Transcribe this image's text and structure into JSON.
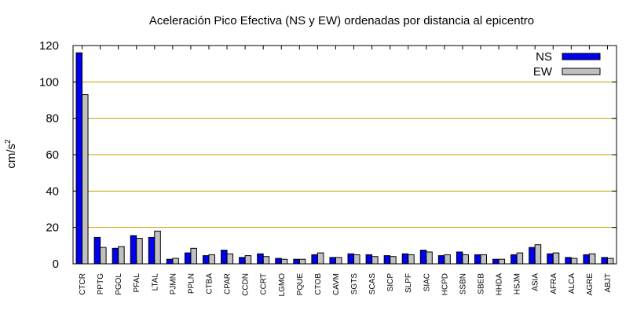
{
  "chart_data": {
    "type": "bar",
    "title": "Aceleración Pico Efectiva (NS y EW) ordenadas por distancia al epicentro",
    "ylabel": "cm/s",
    "ylabel_superscript": "2",
    "xlabel": "",
    "ylim": [
      0,
      120
    ],
    "yticks": [
      0,
      20,
      40,
      60,
      80,
      100,
      120
    ],
    "grid": true,
    "grid_color": "#c8a000",
    "legend_position": "top-right",
    "categories": [
      "CTCR",
      "PPTG",
      "PGOL",
      "PFAL",
      "LTAL",
      "PJMN",
      "PPLN",
      "CTBA",
      "CPAR",
      "CCDN",
      "CCRT",
      "LGMO",
      "PQUE",
      "CTOB",
      "CAVM",
      "SGTS",
      "SCAS",
      "SICP",
      "SLPF",
      "SIAC",
      "HCPD",
      "SSBN",
      "SBEB",
      "HHDA",
      "HSJM",
      "ASIA",
      "AFRA",
      "ALCA",
      "AGRE",
      "ABJT"
    ],
    "series": [
      {
        "name": "NS",
        "color": "#0000ee",
        "values": [
          116,
          14.5,
          8.5,
          15.5,
          14.5,
          2.5,
          6,
          4.5,
          7.5,
          3.5,
          5.5,
          3,
          2.5,
          5,
          3.5,
          5.5,
          5,
          4.5,
          5.5,
          7.5,
          4.5,
          6.5,
          5,
          2.5,
          5,
          9,
          5.5,
          3.5,
          5,
          3.5
        ]
      },
      {
        "name": "EW",
        "color": "#c0c0c0",
        "values": [
          93,
          9,
          9.5,
          14,
          18,
          3,
          8.5,
          5,
          5.5,
          4.5,
          4,
          2.5,
          2.5,
          6,
          3.5,
          5,
          4,
          4,
          5,
          6.5,
          5,
          5,
          5,
          2.5,
          6,
          10.5,
          6,
          3,
          5.5,
          3
        ]
      }
    ]
  }
}
